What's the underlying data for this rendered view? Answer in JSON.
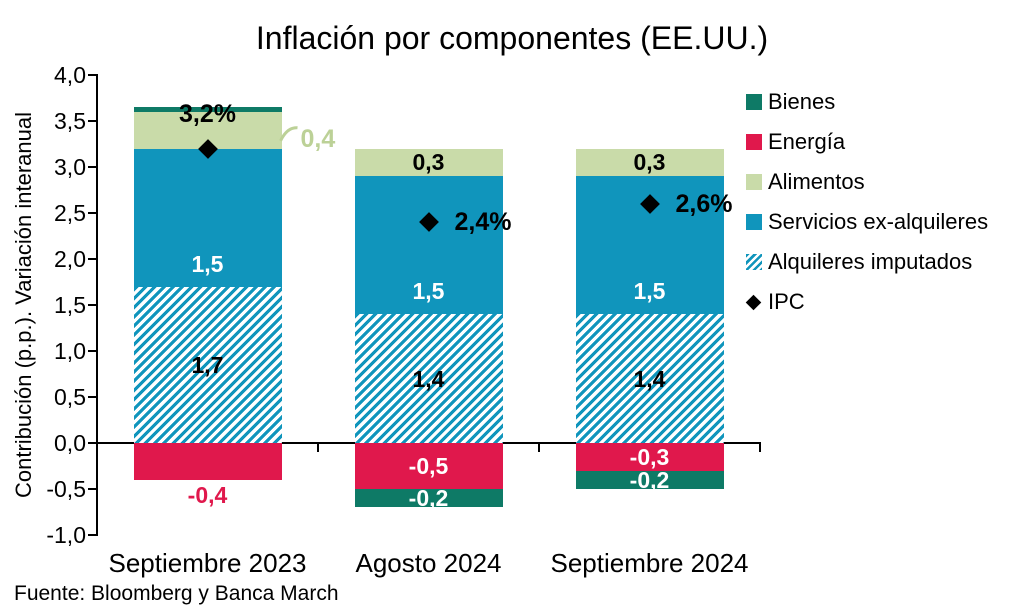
{
  "title": "Inflación por componentes (EE.UU.)",
  "source": "Fuente: Bloomberg y Banca March",
  "y_axis": {
    "label": "Contribución (p.p.). Variación interanual",
    "ticks": [
      "4,0",
      "3,5",
      "3,0",
      "2,5",
      "2,0",
      "1,5",
      "1,0",
      "0,5",
      "0,0",
      "-0,5",
      "-1,0"
    ],
    "max": 4.0,
    "min": -1.0,
    "step": 0.5
  },
  "colors": {
    "bienes": "#0E7A66",
    "energia": "#E0184C",
    "alimentos": "#C9DBA9",
    "servicios": "#1095BC",
    "alquileres": "#1095BC",
    "ipc": "#000000",
    "callout_text": "#BCD197"
  },
  "legend": [
    {
      "label": "Bienes",
      "marker": "square",
      "color": "#0E7A66"
    },
    {
      "label": "Energía",
      "marker": "square",
      "color": "#E0184C"
    },
    {
      "label": "Alimentos",
      "marker": "square",
      "color": "#C9DBA9"
    },
    {
      "label": "Servicios ex-alquileres",
      "marker": "square",
      "color": "#1095BC"
    },
    {
      "label": "Alquileres imputados",
      "marker": "hatch",
      "color": "#1095BC"
    },
    {
      "label": "IPC",
      "marker": "diamond",
      "color": "#000000"
    }
  ],
  "chart_data": {
    "type": "bar",
    "stacked": true,
    "grid": false,
    "legend_position": "right",
    "categories": [
      "Septiembre 2023",
      "Agosto 2024",
      "Septiembre 2024"
    ],
    "ylim": [
      -1.0,
      4.0
    ],
    "series": [
      {
        "name": "Alquileres imputados",
        "color": "#1095BC",
        "pattern": "hatch",
        "values": [
          1.7,
          1.4,
          1.4
        ],
        "labels": [
          "1,7",
          "1,4",
          "1,4"
        ],
        "label_styles": [
          "black-center",
          "black-center",
          "black-center"
        ]
      },
      {
        "name": "Servicios ex-alquileres",
        "color": "#1095BC",
        "pattern": "solid",
        "values": [
          1.5,
          1.5,
          1.5
        ],
        "labels": [
          "1,5",
          "1,5",
          "1,5"
        ],
        "label_styles": [
          "white-low",
          "white-low",
          "white-low"
        ]
      },
      {
        "name": "Alimentos",
        "color": "#C9DBA9",
        "pattern": "solid",
        "values": [
          0.4,
          0.3,
          0.3
        ],
        "labels": [
          "0,4",
          "0,3",
          "0,3"
        ],
        "label_styles": [
          "callout",
          "black-center",
          "black-center"
        ]
      },
      {
        "name": "Energía",
        "color": "#E0184C",
        "pattern": "solid",
        "values": [
          -0.4,
          -0.5,
          -0.3
        ],
        "labels": [
          "-0,4",
          "-0,5",
          "-0,3"
        ],
        "label_styles": [
          "out-below",
          "white-center",
          "white-center"
        ]
      },
      {
        "name": "Bienes",
        "color": "#0E7A66",
        "pattern": "solid",
        "values": [
          0.05,
          -0.2,
          -0.2
        ],
        "labels": [
          "",
          "-0,2",
          "-0,2"
        ],
        "label_styles": [
          "none",
          "white-center",
          "white-center"
        ]
      }
    ],
    "ipc": {
      "name": "IPC",
      "values": [
        3.2,
        2.4,
        2.6
      ],
      "labels": [
        "3,2%",
        "2,4%",
        "2,6%"
      ],
      "label_positions": [
        "above",
        "right",
        "right"
      ]
    }
  }
}
